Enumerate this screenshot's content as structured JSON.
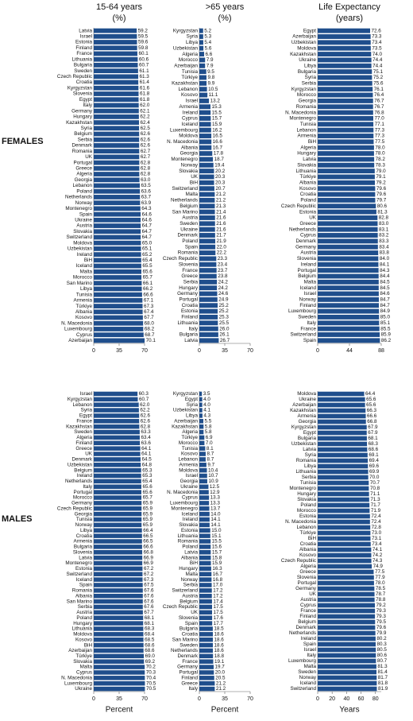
{
  "column_headers": [
    {
      "title": "15-64 years",
      "unit": "(%)"
    },
    {
      "title": ">65 years",
      "unit": "(%)"
    },
    {
      "title": "Life Expectancy",
      "unit": "(years)"
    }
  ],
  "row_labels": [
    "FEMALES",
    "MALES"
  ],
  "chart_data": [
    {
      "type": "bar",
      "orientation": "horizontal",
      "color": "#1f4e8c",
      "xlim": [
        0,
        70
      ],
      "xticks": [
        0,
        35,
        70
      ],
      "categories": [
        "Latvia",
        "Israel",
        "Estonia",
        "Finland",
        "France",
        "Lithuania",
        "Bulgaria",
        "Sweden",
        "Czech Republic",
        "Croatia",
        "Kyrgyzstan",
        "Slovenia",
        "Egypt",
        "Italy",
        "Germany",
        "Hungary",
        "Kazakhstan",
        "Syria",
        "Belgium",
        "Serbia",
        "Denmark",
        "Romania",
        "UK",
        "Portugal",
        "Greece",
        "Algeria",
        "Georgia",
        "Lebanon",
        "Poland",
        "Netherlands",
        "Norway",
        "Montenegro",
        "Spain",
        "Ukraine",
        "Austria",
        "Slovakia",
        "Switzerland",
        "Moldova",
        "Uzbekistan",
        "Ireland",
        "BiH",
        "Iceland",
        "Malta",
        "Morocco",
        "San Marino",
        "Libya",
        "Tunisia",
        "Armenia",
        "Türkiye",
        "Albania",
        "Kosovo",
        "N. Macedonia",
        "Luxembourg",
        "Cyprus",
        "Azerbaijan"
      ],
      "values": [
        59.2,
        59.5,
        59.6,
        59.8,
        60.1,
        60.6,
        60.7,
        61.1,
        61.3,
        61.4,
        61.6,
        61.8,
        61.8,
        62.0,
        62.1,
        62.2,
        62.4,
        62.5,
        62.6,
        62.6,
        62.6,
        62.7,
        62.7,
        62.8,
        62.8,
        62.8,
        63.0,
        63.5,
        63.6,
        63.7,
        63.9,
        64.3,
        64.6,
        64.6,
        64.7,
        64.7,
        64.7,
        65.0,
        65.1,
        65.2,
        65.4,
        65.5,
        65.6,
        65.7,
        66.1,
        66.2,
        66.6,
        67.1,
        67.3,
        67.4,
        67.7,
        68.0,
        68.2,
        68.7,
        70.1
      ],
      "value_labels": [
        "59.2",
        "59.5",
        "59.6",
        "59.8",
        "60.1",
        "60.6",
        "60.7",
        "61.1",
        "61.3",
        "61.4",
        "61.6",
        "61.8",
        "61.8",
        "62.0",
        "62.1",
        "62.2",
        "62.4",
        "62.5",
        "62.6",
        "62.6",
        "62.6",
        "62.7",
        "62.7",
        "62.8",
        "62.8",
        "62.8",
        "63.0",
        "63.5",
        "63.6",
        "63.7",
        "63.9",
        "64.3",
        "64.6",
        "64.6",
        "64.7",
        "64.7",
        "64.7",
        "65.0",
        "65.1",
        "65.2",
        "65.4",
        "65.5",
        "65.6",
        "65.7",
        "66.1",
        "66.2",
        "66.6",
        "67.1",
        "67.3",
        "67.4",
        "67.7",
        "68.0",
        "68.2",
        "68.7",
        "70.1"
      ]
    },
    {
      "type": "bar",
      "orientation": "horizontal",
      "color": "#1f4e8c",
      "xlim": [
        0,
        70
      ],
      "xticks": [
        0,
        35,
        70
      ],
      "categories": [
        "Kyrgyzstan",
        "Syria",
        "Libya",
        "Uzbekistan",
        "Algeria",
        "Morocco",
        "Azerbaijan",
        "Tunisia",
        "Türkiye",
        "Kazakhstan",
        "Lebanon",
        "Kosovo",
        "Israel",
        "Armenia",
        "Ireland",
        "Cyprus",
        "Iceland",
        "Luxembourg",
        "Moldova",
        "N. Macedonia",
        "Albania",
        "Georgia",
        "Montenegro",
        "Norway",
        "Slovakia",
        "UK",
        "BiH",
        "Switzerland",
        "Malta",
        "Netherlands",
        "Belgium",
        "San Marino",
        "Austria",
        "Sweden",
        "Ukraine",
        "Denmark",
        "Poland",
        "Spain",
        "Romania",
        "Czech Republic",
        "Slovenia",
        "France",
        "Greece",
        "Serbia",
        "Hungary",
        "Germany",
        "Portugal",
        "Croatia",
        "Estonia",
        "Finland",
        "Lithuania",
        "Italy",
        "Bulgaria",
        "Latvia"
      ],
      "values": [
        5.2,
        5.3,
        5.4,
        5.6,
        6.6,
        7.9,
        7.9,
        9.5,
        9.8,
        9.9,
        10.5,
        11.1,
        13.2,
        15.3,
        15.5,
        15.7,
        15.9,
        16.2,
        16.5,
        16.6,
        16.7,
        17.8,
        18.7,
        19.4,
        20.2,
        20.3,
        20.3,
        20.7,
        21.2,
        21.2,
        21.3,
        21.4,
        21.6,
        21.6,
        21.6,
        21.7,
        21.9,
        22.0,
        22.2,
        23.3,
        23.4,
        23.7,
        23.8,
        24.2,
        24.2,
        24.6,
        24.9,
        25.2,
        25.2,
        25.3,
        25.5,
        26.0,
        26.1,
        26.7
      ],
      "value_labels": [
        "5.2",
        "5.3",
        "5.4",
        "5.6",
        "6.6",
        "7.9",
        "7.9",
        "9.5",
        "9.8",
        "9.9",
        "10.5",
        "11.1",
        "13.2",
        "15.3",
        "15.5",
        "15.7",
        "15.9",
        "16.2",
        "16.5",
        "16.6",
        "16.7",
        "17.8",
        "18.7",
        "19.4",
        "20.2",
        "20.3",
        "20.3",
        "20.7",
        "21.2",
        "21.2",
        "21.3",
        "21.4",
        "21.6",
        "21.6",
        "21.6",
        "21.7",
        "21.9",
        "22.0",
        "22.2",
        "23.3",
        "23.4",
        "23.7",
        "23.8",
        "24.2",
        "24.2",
        "24.6",
        "24.9",
        "25.2",
        "25.2",
        "25.3",
        "25.5",
        "26.0",
        "26.1",
        "26.7"
      ]
    },
    {
      "type": "bar",
      "orientation": "horizontal",
      "color": "#1f4e8c",
      "xlim": [
        0,
        88
      ],
      "xticks": [
        0,
        44,
        88
      ],
      "categories": [
        "Egypt",
        "Azerbaijan",
        "Uzbekistan",
        "Moldova",
        "Kazakhstan",
        "Ukraine",
        "Libya",
        "Bulgaria",
        "Syria",
        "Serbia",
        "Kyrgyzstan",
        "Morocco",
        "Georgia",
        "Romania",
        "N. Macedonia",
        "Montenegro",
        "Tunisia",
        "Lebanon",
        "Armenia",
        "BiH",
        "Algeria",
        "Hungary",
        "Latvia",
        "Slovakia",
        "Lithuania",
        "Türkiye",
        "Albania",
        "Kosovo",
        "Croatia",
        "Poland",
        "Czech Republic",
        "Estonia",
        "UK",
        "Greece",
        "Netherlands",
        "Cyprus",
        "Denmark",
        "Germany",
        "Austria",
        "Slovenia",
        "Ireland",
        "Portugal",
        "Belgium",
        "Malta",
        "Iceland",
        "Israel",
        "Norway",
        "Finland",
        "Luxembourg",
        "Sweden",
        "Italy",
        "France",
        "Switzerland",
        "Spain"
      ],
      "values": [
        72.6,
        73.3,
        73.4,
        73.5,
        74.0,
        74.4,
        74.4,
        75.1,
        75.2,
        75.6,
        76.1,
        76.4,
        76.7,
        76.7,
        76.8,
        77.0,
        77.1,
        77.3,
        77.3,
        77.5,
        78.0,
        78.0,
        78.2,
        78.3,
        79.0,
        79.1,
        79.2,
        79.6,
        79.6,
        79.7,
        80.6,
        81.3,
        82.8,
        83.0,
        83.1,
        83.2,
        83.3,
        83.4,
        83.8,
        84.0,
        84.1,
        84.3,
        84.4,
        84.5,
        84.5,
        84.6,
        84.7,
        84.7,
        84.9,
        85.0,
        85.1,
        85.5,
        85.9,
        86.2
      ],
      "value_labels": [
        "72.6",
        "73.3",
        "73.4",
        "73.5",
        "74.0",
        "74.4",
        "74.4",
        "75.1",
        "75.2",
        "75.6",
        "76.1",
        "76.4",
        "76.7",
        "76.7",
        "76.8",
        "77.0",
        "77.1",
        "77.3",
        "77.3",
        "77.5",
        "78.0",
        "78.0",
        "78.2",
        "78.3",
        "79.0",
        "79.1",
        "79.2",
        "79.6",
        "79.6",
        "79.7",
        "80.6",
        "81.3",
        "82.8",
        "83.0",
        "83.1",
        "83.2",
        "83.3",
        "83.4",
        "83.8",
        "84.0",
        "84.1",
        "84.3",
        "84.4",
        "84.5",
        "84.5",
        "84.6",
        "84.7",
        "84.7",
        "84.9",
        "85.0",
        "85.1",
        "85.5",
        "85.9",
        "86.2"
      ]
    },
    {
      "type": "bar",
      "orientation": "horizontal",
      "color": "#1f4e8c",
      "xlim": [
        0,
        70
      ],
      "xticks": [
        0,
        35,
        70
      ],
      "xlabel": "Percent",
      "categories": [
        "Israel",
        "Kyrgyzstan",
        "Lebanon",
        "Syria",
        "Egypt",
        "France",
        "Kazakhstan",
        "Sweden",
        "Algeria",
        "Finland",
        "Greece",
        "UK",
        "Denmark",
        "Uzbekistan",
        "Belgium",
        "Ireland",
        "Netherlands",
        "Italy",
        "Portugal",
        "Morocco",
        "Germany",
        "Czech Republic",
        "Georgia",
        "Tunisia",
        "Norway",
        "Libya",
        "Croatia",
        "Armenia",
        "Bulgaria",
        "Slovenia",
        "Latvia",
        "Montenegro",
        "Estonia",
        "Switzerland",
        "Iceland",
        "Spain",
        "Romania",
        "Albania",
        "San Marino",
        "Serbia",
        "Austria",
        "Poland",
        "Hungary",
        "Lithuania",
        "Moldova",
        "Kosovo",
        "BiH",
        "Azerbaijan",
        "Türkiye",
        "Slovakia",
        "Malta",
        "Cyprus",
        "N. Macedonia",
        "Luxembourg",
        "Ukraine"
      ],
      "values": [
        60.3,
        60.7,
        62.0,
        62.2,
        62.6,
        62.6,
        62.8,
        63.3,
        63.4,
        63.6,
        64.1,
        64.1,
        64.5,
        64.8,
        65.3,
        65.3,
        65.4,
        65.6,
        65.6,
        65.7,
        65.9,
        65.9,
        65.9,
        65.9,
        65.9,
        66.4,
        66.5,
        66.5,
        66.6,
        66.8,
        66.9,
        66.9,
        67.2,
        67.2,
        67.3,
        67.5,
        67.6,
        67.6,
        67.6,
        67.6,
        67.7,
        68.1,
        68.1,
        68.3,
        68.4,
        68.5,
        68.6,
        68.6,
        69.0,
        69.2,
        70.2,
        70.3,
        70.4,
        70.5,
        70.5
      ],
      "value_labels": [
        "60.3",
        "60.7",
        "62.0",
        "62.2",
        "62.6",
        "62.6",
        "62.8",
        "63.3",
        "63.4",
        "63.6",
        "64.1",
        "64.1",
        "64.5",
        "64.8",
        "65.3",
        "65.3",
        "65.4",
        "65.6",
        "65.6",
        "65.7",
        "65.9",
        "65.9",
        "65.9",
        "65.9",
        "65.9",
        "66.4",
        "66.5",
        "66.5",
        "66.6",
        "66.8",
        "66.9",
        "66.9",
        "67.2",
        "67.2",
        "67.3",
        "67.5",
        "67.6",
        "67.6",
        "67.6",
        "67.6",
        "67.7",
        "68.1",
        "68.1",
        "68.3",
        "68.4",
        "68.5",
        "68.6",
        "68.6",
        "69.0",
        "69.2",
        "70.2",
        "70.3",
        "70.4",
        "70.5",
        "70.5"
      ]
    },
    {
      "type": "bar",
      "orientation": "horizontal",
      "color": "#1f4e8c",
      "xlim": [
        0,
        70
      ],
      "xticks": [
        0,
        35,
        70
      ],
      "xlabel": "Percent",
      "categories": [
        "Kyrgyzstan",
        "Egypt",
        "Syria",
        "Uzbekistan",
        "Libya",
        "Azerbaijan",
        "Kazakhstan",
        "Algeria",
        "Türkiye",
        "Morocco",
        "Tunisia",
        "Kosovo",
        "Lebanon",
        "Armenia",
        "Moldova",
        "Israel",
        "Georgia",
        "Ukraine",
        "N. Macedonia",
        "Cyprus",
        "Luxembourg",
        "Montenegro",
        "Iceland",
        "Ireland",
        "Slovakia",
        "Estonia",
        "Lithuania",
        "Romania",
        "Poland",
        "Latvia",
        "Albania",
        "BiH",
        "Hungary",
        "Malta",
        "Norway",
        "Serbia",
        "Switzerland",
        "Austria",
        "Belgium",
        "Czech Republic",
        "UK",
        "Slovenia",
        "Spain",
        "Bulgaria",
        "Croatia",
        "San Marino",
        "Sweden",
        "Netherlands",
        "Denmark",
        "France",
        "Germany",
        "Portugal",
        "Finland",
        "Greece",
        "Italy"
      ],
      "values": [
        3.5,
        4.0,
        4.0,
        4.1,
        4.3,
        5.5,
        5.8,
        5.8,
        6.9,
        7.0,
        8.1,
        8.7,
        8.7,
        9.7,
        10.4,
        10.7,
        10.9,
        12.5,
        12.9,
        13.3,
        13.3,
        13.7,
        14.0,
        14.1,
        14.1,
        15.0,
        15.1,
        15.5,
        15.6,
        15.7,
        15.8,
        15.9,
        16.3,
        16.7,
        16.8,
        17.0,
        17.2,
        17.2,
        17.4,
        17.5,
        17.5,
        17.6,
        17.7,
        18.5,
        18.6,
        18.6,
        18.6,
        18.6,
        18.8,
        19.1,
        19.7,
        20.0,
        20.5,
        21.2,
        21.2
      ],
      "value_labels": [
        "3.5",
        "4.0",
        "4.0",
        "4.1",
        "4.3",
        "5.5",
        "5.8",
        "5.8",
        "6.9",
        "7.0",
        "8.1",
        "8.7",
        "8.7",
        "9.7",
        "10.4",
        "10.7",
        "10.9",
        "12.5",
        "12.9",
        "13.3",
        "13.3",
        "13.7",
        "14.0",
        "14.1",
        "14.1",
        "15.0",
        "15.1",
        "15.5",
        "15.6",
        "15.7",
        "15.8",
        "15.9",
        "16.3",
        "16.7",
        "16.8",
        "17.0",
        "17.2",
        "17.2",
        "17.4",
        "17.5",
        "17.5",
        "17.6",
        "17.7",
        "18.5",
        "18.6",
        "18.6",
        "18.6",
        "18.6",
        "18.8",
        "19.1",
        "19.7",
        "20.0",
        "20.5",
        "21.2",
        "21.2"
      ]
    },
    {
      "type": "bar",
      "orientation": "horizontal",
      "color": "#1f4e8c",
      "xlim": [
        0,
        88
      ],
      "xticks": [
        0,
        20,
        40,
        60,
        80
      ],
      "xlabel": "Years",
      "categories": [
        "Moldova",
        "Ukraine",
        "Azerbaijan",
        "Kazakhstan",
        "Armenia",
        "Georgia",
        "Kyrgyzstan",
        "Egypt",
        "Bulgaria",
        "Uzbekistan",
        "Latvia",
        "Syria",
        "Romania",
        "Libya",
        "Lithuania",
        "Serbia",
        "Tunisia",
        "Montenegro",
        "Hungary",
        "Slovakia",
        "Poland",
        "Morocco",
        "Estonia",
        "N. Macedonia",
        "Lebanon",
        "Türkiye",
        "BiH",
        "Croatia",
        "Albania",
        "Kosovo",
        "Czech Republic",
        "Algeria",
        "Greece",
        "Slovenia",
        "Portugal",
        "Germany",
        "UK",
        "Austria",
        "Cyprus",
        "France",
        "Finland",
        "Belgium",
        "Denmark",
        "Netherlands",
        "Ireland",
        "Spain",
        "Israel",
        "Italy",
        "Luxembourg",
        "Malta",
        "Sweden",
        "Norway",
        "Iceland",
        "Switzerland"
      ],
      "values": [
        64.4,
        65.6,
        65.6,
        66.3,
        66.6,
        66.8,
        67.9,
        67.9,
        68.1,
        68.3,
        68.6,
        69.1,
        69.4,
        69.6,
        69.9,
        70.0,
        70.7,
        70.8,
        71.1,
        71.3,
        71.7,
        71.9,
        72.4,
        72.4,
        72.8,
        73.0,
        73.1,
        73.4,
        74.1,
        74.2,
        74.3,
        74.9,
        77.5,
        77.9,
        78.0,
        78.5,
        78.7,
        78.8,
        79.2,
        79.3,
        79.3,
        79.5,
        79.6,
        79.9,
        80.2,
        80.3,
        80.5,
        80.6,
        80.7,
        81.3,
        81.4,
        81.7,
        81.8,
        81.9
      ],
      "value_labels": [
        "64.4",
        "65.6",
        "65.6",
        "66.3",
        "66.6",
        "66.8",
        "67.9",
        "67.9",
        "68.1",
        "68.3",
        "68.6",
        "69.1",
        "69.4",
        "69.6",
        "69.9",
        "70.0",
        "70.7",
        "70.8",
        "71.1",
        "71.3",
        "71.7",
        "71.9",
        "72.4",
        "72.4",
        "72.8",
        "73.0",
        "73.1",
        "73.4",
        "74.1",
        "74.2",
        "74.3",
        "74.9",
        "77.5",
        "77.9",
        "78.0",
        "78.5",
        "78.7",
        "78.8",
        "79.2",
        "79.3",
        "79.3",
        "79.5",
        "79.6",
        "79.9",
        "80.2",
        "80.3",
        "80.5",
        "80.6",
        "80.7",
        "81.3",
        "81.4",
        "81.7",
        "81.8",
        "81.9"
      ]
    }
  ]
}
